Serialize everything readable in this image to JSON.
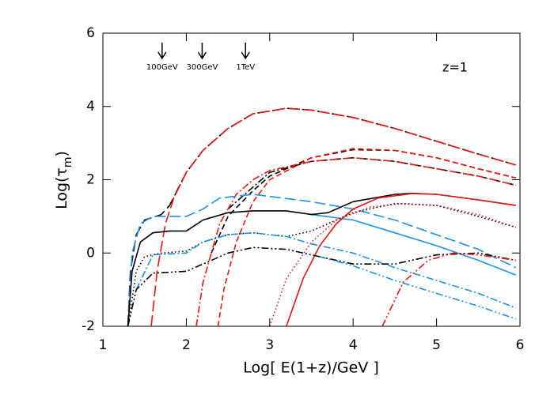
{
  "chart_data": {
    "type": "line",
    "x_label": "Log[ E(1+z)/GeV ]",
    "y_label": [
      "Log(τ",
      "m",
      ")"
    ],
    "annotation": "z=1",
    "markers": [
      {
        "label": "100GeV",
        "x": 1.71
      },
      {
        "label": "300GeV",
        "x": 2.19
      },
      {
        "label": "1TeV",
        "x": 2.71
      }
    ],
    "xlim": [
      1,
      6
    ],
    "ylim": [
      -2,
      6
    ],
    "xticks": [
      1,
      2,
      3,
      4,
      5,
      6
    ],
    "yticks": [
      -2,
      0,
      2,
      4,
      6
    ],
    "series": [
      {
        "color": "#000000",
        "dash": "long-dash",
        "x": [
          1.3,
          1.33,
          1.4,
          1.5,
          1.7,
          1.8,
          2.0,
          2.2,
          2.5,
          2.8,
          3.2,
          3.5,
          4,
          4.5,
          5,
          5.5,
          5.95
        ],
        "values": [
          -2,
          -0.5,
          0.5,
          0.9,
          1.05,
          1.3,
          2.2,
          2.8,
          3.4,
          3.8,
          3.95,
          3.9,
          3.7,
          3.4,
          3.05,
          2.7,
          2.4
        ]
      },
      {
        "color": "#e8170f",
        "dash": "long-dash",
        "x": [
          1.58,
          1.65,
          1.75,
          1.85,
          2.0,
          2.2,
          2.5,
          2.8,
          3.2,
          3.5,
          4,
          4.5,
          5,
          5.5,
          5.95
        ],
        "values": [
          -2,
          -0.5,
          0.8,
          1.5,
          2.2,
          2.8,
          3.4,
          3.8,
          3.95,
          3.9,
          3.7,
          3.4,
          3.05,
          2.7,
          2.4
        ]
      },
      {
        "color": "#000000",
        "dash": "dash",
        "x": [
          2.3,
          2.5,
          2.8,
          3.0,
          3.5,
          4,
          4.5,
          5,
          5.5,
          5.95
        ],
        "values": [
          0,
          1.0,
          1.7,
          2.1,
          2.6,
          2.82,
          2.8,
          2.6,
          2.3,
          2.05
        ]
      },
      {
        "color": "#e8170f",
        "dash": "dash",
        "x": [
          2.38,
          2.45,
          2.6,
          2.8,
          3.0,
          3.5,
          4,
          4.5,
          5,
          5.5,
          5.95
        ],
        "values": [
          -2,
          -1,
          0.3,
          1.4,
          2.0,
          2.6,
          2.85,
          2.8,
          2.6,
          2.3,
          2.05
        ]
      },
      {
        "color": "#000000",
        "dash": "dash-dot",
        "x": [
          2.5,
          3,
          3.5,
          4,
          4.5,
          5,
          5.5,
          5.95
        ],
        "values": [
          1.2,
          2.2,
          2.5,
          2.6,
          2.5,
          2.3,
          2.1,
          1.85
        ]
      },
      {
        "color": "#e8170f",
        "dash": "dash-dot",
        "x": [
          2.12,
          2.2,
          2.4,
          2.6,
          2.8,
          3,
          3.5,
          4,
          4.5,
          5,
          5.5,
          5.95
        ],
        "values": [
          -2,
          -0.8,
          0.8,
          1.6,
          2.0,
          2.25,
          2.5,
          2.6,
          2.5,
          2.3,
          2.1,
          1.85
        ]
      },
      {
        "color": "#1f8fe8",
        "dash": "long-dash",
        "x": [
          1.3,
          1.35,
          1.45,
          1.6,
          2.0,
          2.2,
          2.4,
          2.8,
          3.5,
          4,
          4.5,
          5,
          5.5,
          5.95
        ],
        "values": [
          -2,
          0,
          0.8,
          1.0,
          1.0,
          1.2,
          1.5,
          1.6,
          1.4,
          1.2,
          0.9,
          0.5,
          0.1,
          -0.4
        ]
      },
      {
        "color": "#1f8fe8",
        "dash": "solid",
        "x": [
          3.5,
          4,
          4.5,
          5,
          5.5,
          5.95
        ],
        "values": [
          1.05,
          0.9,
          0.55,
          0.2,
          -0.2,
          -0.6
        ]
      },
      {
        "color": "#000000",
        "dash": "solid",
        "x": [
          1.3,
          1.35,
          1.45,
          1.6,
          1.8,
          2.0,
          2.2,
          2.5,
          2.8,
          3.2,
          3.5,
          3.7,
          4,
          4.5,
          4.7,
          5,
          5.5,
          5.95
        ],
        "values": [
          -2,
          -0.5,
          0.3,
          0.55,
          0.6,
          0.6,
          0.9,
          1.1,
          1.15,
          1.15,
          1.05,
          1.1,
          1.4,
          1.6,
          1.63,
          1.6,
          1.45,
          1.3
        ]
      },
      {
        "color": "#e8170f",
        "dash": "solid",
        "x": [
          3.2,
          3.4,
          3.6,
          3.8,
          4,
          4.3,
          4.7,
          5,
          5.5,
          5.95
        ],
        "values": [
          -2,
          -0.7,
          0.2,
          0.8,
          1.2,
          1.5,
          1.62,
          1.6,
          1.45,
          1.3
        ]
      },
      {
        "color": "#000000",
        "dash": "dotted",
        "x": [
          1.3,
          1.4,
          1.5,
          1.7,
          2.0,
          2.2,
          2.5,
          2.8,
          3.2,
          3.5,
          4,
          4.5,
          5,
          5.5,
          5.95
        ],
        "values": [
          -2,
          -0.5,
          -0.1,
          0,
          0.05,
          0.3,
          0.5,
          0.55,
          0.45,
          0.6,
          1.1,
          1.35,
          1.3,
          1.0,
          0.7
        ]
      },
      {
        "color": "#e8170f",
        "dash": "dotted",
        "x": [
          3.0,
          3.2,
          3.5,
          3.8,
          4.2,
          4.6,
          5,
          5.5,
          5.95
        ],
        "values": [
          -2,
          -0.7,
          0.3,
          0.9,
          1.25,
          1.35,
          1.3,
          1.05,
          0.7
        ]
      },
      {
        "color": "#1f8fe8",
        "dash": "dash-dot",
        "x": [
          1.4,
          1.6,
          2,
          2.2,
          2.5,
          2.8,
          3.2,
          3.5,
          4,
          4.5,
          5,
          5.5,
          5.95
        ],
        "values": [
          -1,
          -0.05,
          0.0,
          0.3,
          0.5,
          0.55,
          0.45,
          0.25,
          0,
          -0.4,
          -0.75,
          -1.1,
          -1.5
        ]
      },
      {
        "color": "#000000",
        "dash": "dash-dot-dot",
        "x": [
          1.3,
          1.4,
          1.6,
          2.0,
          2.2,
          2.5,
          2.8,
          3.2,
          3.6,
          4,
          4.5,
          5,
          5.5,
          5.95
        ],
        "values": [
          -2,
          -1,
          -0.55,
          -0.5,
          -0.3,
          0.0,
          0.15,
          0.1,
          -0.1,
          -0.3,
          -0.3,
          -0.05,
          0,
          -0.2
        ]
      },
      {
        "color": "#1f8fe8",
        "dash": "dash-dot-dot",
        "x": [
          3.6,
          4,
          4.5,
          5,
          5.5,
          5.95
        ],
        "values": [
          -0.1,
          -0.35,
          -0.75,
          -1.1,
          -1.45,
          -1.8
        ]
      },
      {
        "color": "#e8170f",
        "dash": "dash-dot-dot",
        "x": [
          4.35,
          4.6,
          4.9,
          5.2,
          5.5,
          5.95
        ],
        "values": [
          -2,
          -0.8,
          -0.2,
          0.0,
          -0.05,
          -0.2
        ]
      }
    ]
  }
}
